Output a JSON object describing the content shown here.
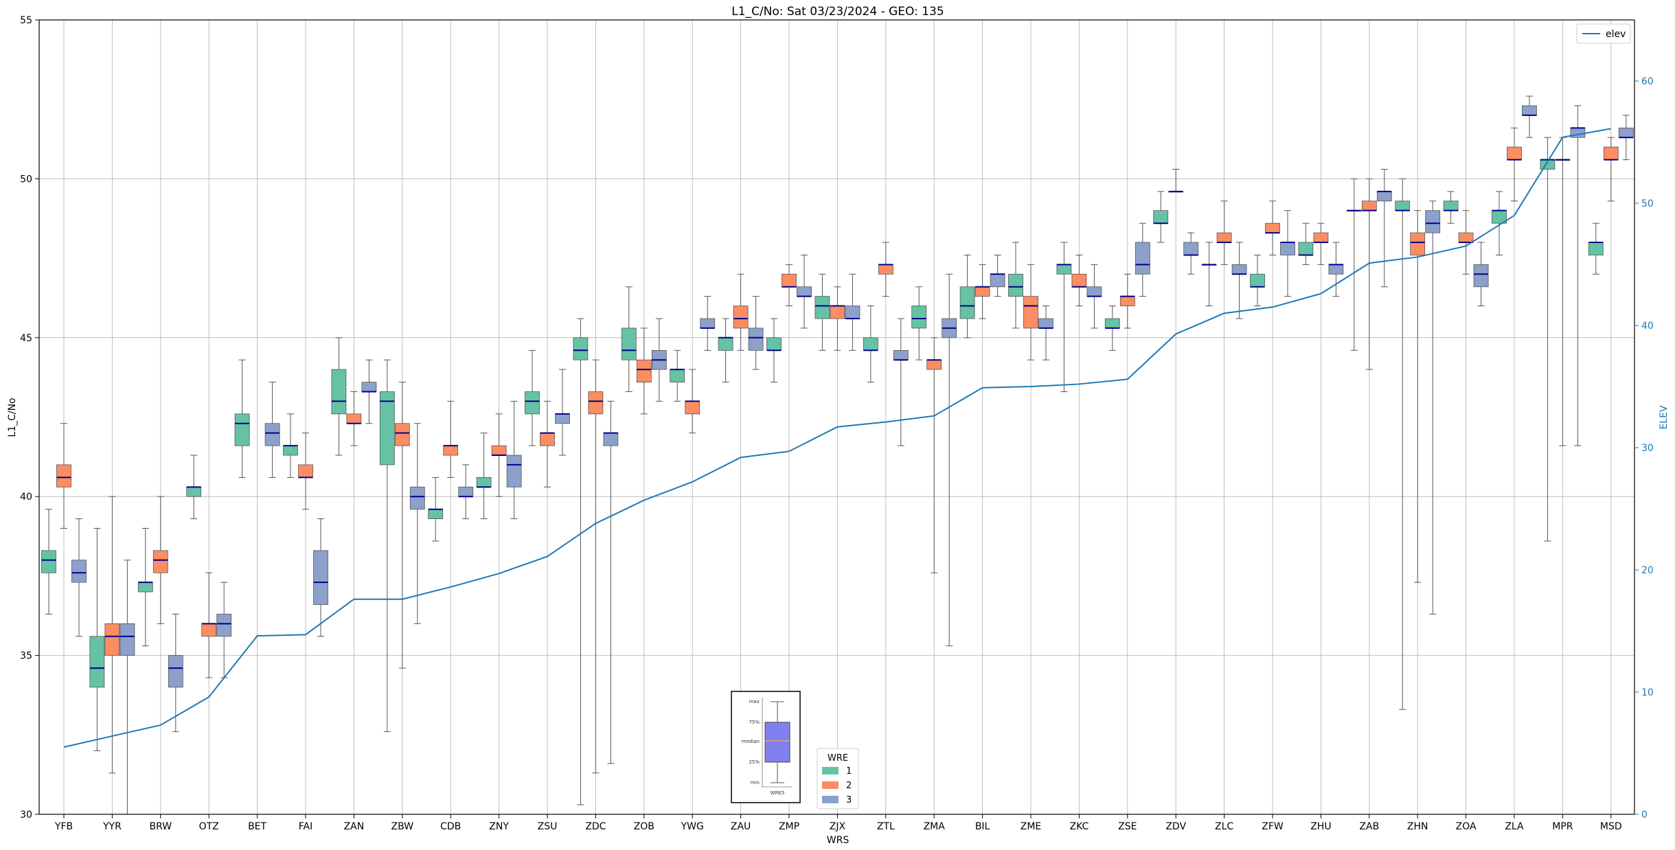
{
  "chart_data": {
    "type": "box",
    "title": "L1_C/No: Sat 03/23/2024 - GEO: 135",
    "xlabel": "WRS",
    "ylabel": "L1_C/No",
    "y2label": "ELEV",
    "ylim": [
      30,
      55
    ],
    "y2lim": [
      0,
      65
    ],
    "yticks": [
      30,
      35,
      40,
      45,
      50,
      55
    ],
    "y2ticks": [
      0,
      10,
      20,
      30,
      40,
      50,
      60
    ],
    "grid": true,
    "categories": [
      "YFB",
      "YYR",
      "BRW",
      "OTZ",
      "BET",
      "FAI",
      "ZAN",
      "ZBW",
      "CDB",
      "ZNY",
      "ZSU",
      "ZDC",
      "ZOB",
      "YWG",
      "ZAU",
      "ZMP",
      "ZJX",
      "ZTL",
      "ZMA",
      "BIL",
      "ZME",
      "ZKC",
      "ZSE",
      "ZDV",
      "ZLC",
      "ZFW",
      "ZHU",
      "ZAB",
      "ZHN",
      "ZOA",
      "ZLA",
      "MPR",
      "MSD"
    ],
    "box_legend": {
      "title": "WRE",
      "entries": [
        {
          "label": "1",
          "color": "#66c2a5"
        },
        {
          "label": "2",
          "color": "#fc8d62"
        },
        {
          "label": "3",
          "color": "#8da0cb"
        }
      ],
      "placement": "bottom-center"
    },
    "line_legend": {
      "label": "elev",
      "color": "#1f77b4",
      "placement": "top-right"
    },
    "key_box": {
      "labels": [
        "max",
        "75%",
        "median",
        "25%",
        "min"
      ],
      "caption": "WRE5"
    },
    "elev": [
      5.5,
      6.4,
      7.3,
      9.6,
      14.6,
      14.7,
      17.6,
      17.6,
      18.6,
      19.7,
      21.1,
      23.8,
      25.7,
      27.2,
      29.2,
      29.7,
      31.7,
      32.1,
      32.6,
      34.9,
      35.0,
      35.2,
      35.6,
      39.3,
      41.0,
      41.5,
      42.6,
      45.1,
      45.6,
      46.5,
      49.0,
      55.4,
      56.1
    ],
    "boxes": [
      {
        "cat": "YFB",
        "wre": 1,
        "min": 36.3,
        "q1": 37.6,
        "med": 38.0,
        "q3": 38.3,
        "max": 39.6
      },
      {
        "cat": "YFB",
        "wre": 2,
        "min": 39.0,
        "q1": 40.3,
        "med": 40.6,
        "q3": 41.0,
        "max": 42.3
      },
      {
        "cat": "YFB",
        "wre": 3,
        "min": 35.6,
        "q1": 37.3,
        "med": 37.6,
        "q3": 38.0,
        "max": 39.3
      },
      {
        "cat": "YYR",
        "wre": 1,
        "min": 32.0,
        "q1": 34.0,
        "med": 34.6,
        "q3": 35.6,
        "max": 39.0
      },
      {
        "cat": "YYR",
        "wre": 2,
        "min": 31.3,
        "q1": 35.0,
        "med": 35.6,
        "q3": 36.0,
        "max": 40.0
      },
      {
        "cat": "YYR",
        "wre": 3,
        "min": 30.0,
        "q1": 35.0,
        "med": 35.6,
        "q3": 36.0,
        "max": 38.0
      },
      {
        "cat": "BRW",
        "wre": 1,
        "min": 35.3,
        "q1": 37.0,
        "med": 37.3,
        "q3": 37.3,
        "max": 39.0
      },
      {
        "cat": "BRW",
        "wre": 2,
        "min": 36.0,
        "q1": 37.6,
        "med": 38.0,
        "q3": 38.3,
        "max": 40.0
      },
      {
        "cat": "BRW",
        "wre": 3,
        "min": 32.6,
        "q1": 34.0,
        "med": 34.6,
        "q3": 35.0,
        "max": 36.3
      },
      {
        "cat": "OTZ",
        "wre": 1,
        "min": 39.3,
        "q1": 40.0,
        "med": 40.3,
        "q3": 40.3,
        "max": 41.3
      },
      {
        "cat": "OTZ",
        "wre": 2,
        "min": 34.3,
        "q1": 35.6,
        "med": 36.0,
        "q3": 36.0,
        "max": 37.6
      },
      {
        "cat": "OTZ",
        "wre": 3,
        "min": 34.3,
        "q1": 35.6,
        "med": 36.0,
        "q3": 36.3,
        "max": 37.3
      },
      {
        "cat": "BET",
        "wre": 1,
        "min": 40.6,
        "q1": 41.6,
        "med": 42.3,
        "q3": 42.6,
        "max": 44.3
      },
      {
        "cat": "BET",
        "wre": 3,
        "min": 40.6,
        "q1": 41.6,
        "med": 42.0,
        "q3": 42.3,
        "max": 43.6
      },
      {
        "cat": "FAI",
        "wre": 1,
        "min": 40.6,
        "q1": 41.3,
        "med": 41.6,
        "q3": 41.6,
        "max": 42.6
      },
      {
        "cat": "FAI",
        "wre": 2,
        "min": 39.6,
        "q1": 40.6,
        "med": 40.6,
        "q3": 41.0,
        "max": 42.0
      },
      {
        "cat": "FAI",
        "wre": 3,
        "min": 35.6,
        "q1": 36.6,
        "med": 37.3,
        "q3": 38.3,
        "max": 39.3
      },
      {
        "cat": "ZAN",
        "wre": 1,
        "min": 41.3,
        "q1": 42.6,
        "med": 43.0,
        "q3": 44.0,
        "max": 45.0
      },
      {
        "cat": "ZAN",
        "wre": 2,
        "min": 41.6,
        "q1": 42.3,
        "med": 42.3,
        "q3": 42.6,
        "max": 43.3
      },
      {
        "cat": "ZAN",
        "wre": 3,
        "min": 42.3,
        "q1": 43.3,
        "med": 43.3,
        "q3": 43.6,
        "max": 44.3
      },
      {
        "cat": "ZBW",
        "wre": 1,
        "min": 32.6,
        "q1": 41.0,
        "med": 43.0,
        "q3": 43.3,
        "max": 44.3
      },
      {
        "cat": "ZBW",
        "wre": 2,
        "min": 34.6,
        "q1": 41.6,
        "med": 42.0,
        "q3": 42.3,
        "max": 43.6
      },
      {
        "cat": "ZBW",
        "wre": 3,
        "min": 36.0,
        "q1": 39.6,
        "med": 40.0,
        "q3": 40.3,
        "max": 42.3
      },
      {
        "cat": "CDB",
        "wre": 1,
        "min": 38.6,
        "q1": 39.3,
        "med": 39.6,
        "q3": 39.6,
        "max": 40.6
      },
      {
        "cat": "CDB",
        "wre": 2,
        "min": 40.6,
        "q1": 41.3,
        "med": 41.6,
        "q3": 41.6,
        "max": 43.0
      },
      {
        "cat": "CDB",
        "wre": 3,
        "min": 39.3,
        "q1": 40.0,
        "med": 40.0,
        "q3": 40.3,
        "max": 41.0
      },
      {
        "cat": "ZNY",
        "wre": 1,
        "min": 39.3,
        "q1": 40.3,
        "med": 40.3,
        "q3": 40.6,
        "max": 42.0
      },
      {
        "cat": "ZNY",
        "wre": 2,
        "min": 40.0,
        "q1": 41.3,
        "med": 41.3,
        "q3": 41.6,
        "max": 42.6
      },
      {
        "cat": "ZNY",
        "wre": 3,
        "min": 39.3,
        "q1": 40.3,
        "med": 41.0,
        "q3": 41.3,
        "max": 43.0
      },
      {
        "cat": "ZSU",
        "wre": 1,
        "min": 41.6,
        "q1": 42.6,
        "med": 43.0,
        "q3": 43.3,
        "max": 44.6
      },
      {
        "cat": "ZSU",
        "wre": 2,
        "min": 40.3,
        "q1": 41.6,
        "med": 42.0,
        "q3": 42.0,
        "max": 43.0
      },
      {
        "cat": "ZSU",
        "wre": 3,
        "min": 41.3,
        "q1": 42.3,
        "med": 42.6,
        "q3": 42.6,
        "max": 44.0
      },
      {
        "cat": "ZDC",
        "wre": 1,
        "min": 30.3,
        "q1": 44.3,
        "med": 44.6,
        "q3": 45.0,
        "max": 45.6
      },
      {
        "cat": "ZDC",
        "wre": 2,
        "min": 31.3,
        "q1": 42.6,
        "med": 43.0,
        "q3": 43.3,
        "max": 44.3
      },
      {
        "cat": "ZDC",
        "wre": 3,
        "min": 31.6,
        "q1": 41.6,
        "med": 42.0,
        "q3": 42.0,
        "max": 43.0
      },
      {
        "cat": "ZOB",
        "wre": 1,
        "min": 43.3,
        "q1": 44.3,
        "med": 44.6,
        "q3": 45.3,
        "max": 46.6
      },
      {
        "cat": "ZOB",
        "wre": 2,
        "min": 42.6,
        "q1": 43.6,
        "med": 44.0,
        "q3": 44.3,
        "max": 45.3
      },
      {
        "cat": "ZOB",
        "wre": 3,
        "min": 43.0,
        "q1": 44.0,
        "med": 44.3,
        "q3": 44.6,
        "max": 45.6
      },
      {
        "cat": "YWG",
        "wre": 1,
        "min": 43.0,
        "q1": 43.6,
        "med": 44.0,
        "q3": 44.0,
        "max": 44.6
      },
      {
        "cat": "YWG",
        "wre": 2,
        "min": 42.0,
        "q1": 42.6,
        "med": 43.0,
        "q3": 43.0,
        "max": 44.0
      },
      {
        "cat": "YWG",
        "wre": 3,
        "min": 44.6,
        "q1": 45.3,
        "med": 45.3,
        "q3": 45.6,
        "max": 46.3
      },
      {
        "cat": "ZAU",
        "wre": 1,
        "min": 43.6,
        "q1": 44.6,
        "med": 45.0,
        "q3": 45.0,
        "max": 45.6
      },
      {
        "cat": "ZAU",
        "wre": 2,
        "min": 44.6,
        "q1": 45.3,
        "med": 45.6,
        "q3": 46.0,
        "max": 47.0
      },
      {
        "cat": "ZAU",
        "wre": 3,
        "min": 44.0,
        "q1": 44.6,
        "med": 45.0,
        "q3": 45.3,
        "max": 46.3
      },
      {
        "cat": "ZMP",
        "wre": 1,
        "min": 43.6,
        "q1": 44.6,
        "med": 44.6,
        "q3": 45.0,
        "max": 45.6
      },
      {
        "cat": "ZMP",
        "wre": 2,
        "min": 46.0,
        "q1": 46.6,
        "med": 46.6,
        "q3": 47.0,
        "max": 47.3
      },
      {
        "cat": "ZMP",
        "wre": 3,
        "min": 45.3,
        "q1": 46.3,
        "med": 46.3,
        "q3": 46.6,
        "max": 47.6
      },
      {
        "cat": "ZJX",
        "wre": 1,
        "min": 44.6,
        "q1": 45.6,
        "med": 46.0,
        "q3": 46.3,
        "max": 47.0
      },
      {
        "cat": "ZJX",
        "wre": 2,
        "min": 44.6,
        "q1": 45.6,
        "med": 46.0,
        "q3": 46.0,
        "max": 46.6
      },
      {
        "cat": "ZJX",
        "wre": 3,
        "min": 44.6,
        "q1": 45.6,
        "med": 45.6,
        "q3": 46.0,
        "max": 47.0
      },
      {
        "cat": "ZTL",
        "wre": 1,
        "min": 43.6,
        "q1": 44.6,
        "med": 44.6,
        "q3": 45.0,
        "max": 46.0
      },
      {
        "cat": "ZTL",
        "wre": 2,
        "min": 46.3,
        "q1": 47.0,
        "med": 47.3,
        "q3": 47.3,
        "max": 48.0
      },
      {
        "cat": "ZTL",
        "wre": 3,
        "min": 41.6,
        "q1": 44.3,
        "med": 44.3,
        "q3": 44.6,
        "max": 45.6
      },
      {
        "cat": "ZMA",
        "wre": 1,
        "min": 44.3,
        "q1": 45.3,
        "med": 45.6,
        "q3": 46.0,
        "max": 46.6
      },
      {
        "cat": "ZMA",
        "wre": 2,
        "min": 37.6,
        "q1": 44.0,
        "med": 44.3,
        "q3": 44.3,
        "max": 45.0
      },
      {
        "cat": "ZMA",
        "wre": 3,
        "min": 35.3,
        "q1": 45.0,
        "med": 45.3,
        "q3": 45.6,
        "max": 47.0
      },
      {
        "cat": "BIL",
        "wre": 1,
        "min": 45.0,
        "q1": 45.6,
        "med": 46.0,
        "q3": 46.6,
        "max": 47.6
      },
      {
        "cat": "BIL",
        "wre": 2,
        "min": 45.6,
        "q1": 46.3,
        "med": 46.6,
        "q3": 46.6,
        "max": 47.3
      },
      {
        "cat": "BIL",
        "wre": 3,
        "min": 46.3,
        "q1": 46.6,
        "med": 47.0,
        "q3": 47.0,
        "max": 47.6
      },
      {
        "cat": "ZME",
        "wre": 1,
        "min": 45.3,
        "q1": 46.3,
        "med": 46.6,
        "q3": 47.0,
        "max": 48.0
      },
      {
        "cat": "ZME",
        "wre": 2,
        "min": 44.3,
        "q1": 45.3,
        "med": 46.0,
        "q3": 46.3,
        "max": 47.3
      },
      {
        "cat": "ZME",
        "wre": 3,
        "min": 44.3,
        "q1": 45.3,
        "med": 45.3,
        "q3": 45.6,
        "max": 46.0
      },
      {
        "cat": "ZKC",
        "wre": 1,
        "min": 43.3,
        "q1": 47.0,
        "med": 47.3,
        "q3": 47.3,
        "max": 48.0
      },
      {
        "cat": "ZKC",
        "wre": 2,
        "min": 46.0,
        "q1": 46.6,
        "med": 46.6,
        "q3": 47.0,
        "max": 47.6
      },
      {
        "cat": "ZKC",
        "wre": 3,
        "min": 45.3,
        "q1": 46.3,
        "med": 46.3,
        "q3": 46.6,
        "max": 47.3
      },
      {
        "cat": "ZSE",
        "wre": 1,
        "min": 44.6,
        "q1": 45.3,
        "med": 45.3,
        "q3": 45.6,
        "max": 46.0
      },
      {
        "cat": "ZSE",
        "wre": 2,
        "min": 45.3,
        "q1": 46.0,
        "med": 46.3,
        "q3": 46.3,
        "max": 47.0
      },
      {
        "cat": "ZSE",
        "wre": 3,
        "min": 46.3,
        "q1": 47.0,
        "med": 47.3,
        "q3": 48.0,
        "max": 48.6
      },
      {
        "cat": "ZDV",
        "wre": 1,
        "min": 48.0,
        "q1": 48.6,
        "med": 48.6,
        "q3": 49.0,
        "max": 49.6
      },
      {
        "cat": "ZDV",
        "wre": 2,
        "min": 49.6,
        "q1": 49.6,
        "med": 49.6,
        "q3": 49.6,
        "max": 50.3
      },
      {
        "cat": "ZDV",
        "wre": 3,
        "min": 47.0,
        "q1": 47.6,
        "med": 47.6,
        "q3": 48.0,
        "max": 48.3
      },
      {
        "cat": "ZLC",
        "wre": 1,
        "min": 46.0,
        "q1": 47.3,
        "med": 47.3,
        "q3": 47.3,
        "max": 48.0
      },
      {
        "cat": "ZLC",
        "wre": 2,
        "min": 47.3,
        "q1": 48.0,
        "med": 48.0,
        "q3": 48.3,
        "max": 49.3
      },
      {
        "cat": "ZLC",
        "wre": 3,
        "min": 45.6,
        "q1": 47.0,
        "med": 47.0,
        "q3": 47.3,
        "max": 48.0
      },
      {
        "cat": "ZFW",
        "wre": 1,
        "min": 46.0,
        "q1": 46.6,
        "med": 46.6,
        "q3": 47.0,
        "max": 47.6
      },
      {
        "cat": "ZFW",
        "wre": 2,
        "min": 47.6,
        "q1": 48.3,
        "med": 48.3,
        "q3": 48.6,
        "max": 49.3
      },
      {
        "cat": "ZFW",
        "wre": 3,
        "min": 46.3,
        "q1": 47.6,
        "med": 48.0,
        "q3": 48.0,
        "max": 49.0
      },
      {
        "cat": "ZHU",
        "wre": 1,
        "min": 47.3,
        "q1": 47.6,
        "med": 47.6,
        "q3": 48.0,
        "max": 48.6
      },
      {
        "cat": "ZHU",
        "wre": 2,
        "min": 47.3,
        "q1": 48.0,
        "med": 48.0,
        "q3": 48.3,
        "max": 48.6
      },
      {
        "cat": "ZHU",
        "wre": 3,
        "min": 46.3,
        "q1": 47.0,
        "med": 47.3,
        "q3": 47.3,
        "max": 48.0
      },
      {
        "cat": "ZAB",
        "wre": 1,
        "min": 44.6,
        "q1": 49.0,
        "med": 49.0,
        "q3": 49.0,
        "max": 50.0
      },
      {
        "cat": "ZAB",
        "wre": 2,
        "min": 44.0,
        "q1": 49.0,
        "med": 49.0,
        "q3": 49.3,
        "max": 50.0
      },
      {
        "cat": "ZAB",
        "wre": 3,
        "min": 46.6,
        "q1": 49.3,
        "med": 49.6,
        "q3": 49.6,
        "max": 50.3
      },
      {
        "cat": "ZHN",
        "wre": 1,
        "min": 33.3,
        "q1": 49.0,
        "med": 49.0,
        "q3": 49.3,
        "max": 50.0
      },
      {
        "cat": "ZHN",
        "wre": 2,
        "min": 37.3,
        "q1": 47.6,
        "med": 48.0,
        "q3": 48.3,
        "max": 49.0
      },
      {
        "cat": "ZHN",
        "wre": 3,
        "min": 36.3,
        "q1": 48.3,
        "med": 48.6,
        "q3": 49.0,
        "max": 49.3
      },
      {
        "cat": "ZOA",
        "wre": 1,
        "min": 48.6,
        "q1": 49.0,
        "med": 49.0,
        "q3": 49.3,
        "max": 49.6
      },
      {
        "cat": "ZOA",
        "wre": 2,
        "min": 47.0,
        "q1": 48.0,
        "med": 48.0,
        "q3": 48.3,
        "max": 49.0
      },
      {
        "cat": "ZOA",
        "wre": 3,
        "min": 46.0,
        "q1": 46.6,
        "med": 47.0,
        "q3": 47.3,
        "max": 48.0
      },
      {
        "cat": "ZLA",
        "wre": 1,
        "min": 47.6,
        "q1": 48.6,
        "med": 49.0,
        "q3": 49.0,
        "max": 49.6
      },
      {
        "cat": "ZLA",
        "wre": 2,
        "min": 49.3,
        "q1": 50.6,
        "med": 50.6,
        "q3": 51.0,
        "max": 51.6
      },
      {
        "cat": "ZLA",
        "wre": 3,
        "min": 51.3,
        "q1": 52.0,
        "med": 52.0,
        "q3": 52.3,
        "max": 52.6
      },
      {
        "cat": "MPR",
        "wre": 1,
        "min": 38.6,
        "q1": 50.3,
        "med": 50.6,
        "q3": 50.6,
        "max": 51.3
      },
      {
        "cat": "MPR",
        "wre": 2,
        "min": 41.6,
        "q1": 50.6,
        "med": 50.6,
        "q3": 50.6,
        "max": 51.3
      },
      {
        "cat": "MPR",
        "wre": 3,
        "min": 41.6,
        "q1": 51.3,
        "med": 51.6,
        "q3": 51.6,
        "max": 52.3
      },
      {
        "cat": "MSD",
        "wre": 1,
        "min": 47.0,
        "q1": 47.6,
        "med": 48.0,
        "q3": 48.0,
        "max": 48.6
      },
      {
        "cat": "MSD",
        "wre": 2,
        "min": 49.3,
        "q1": 50.6,
        "med": 50.6,
        "q3": 51.0,
        "max": 51.3
      },
      {
        "cat": "MSD",
        "wre": 3,
        "min": 50.6,
        "q1": 51.3,
        "med": 51.3,
        "q3": 51.6,
        "max": 52.0
      }
    ]
  }
}
